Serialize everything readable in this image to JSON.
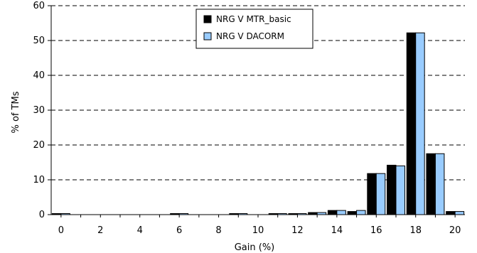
{
  "chart_data": {
    "type": "bar",
    "title": "",
    "xlabel": "Gain (%)",
    "ylabel": "% of TMs",
    "xlim": [
      -0.5,
      20.5
    ],
    "ylim": [
      0,
      60
    ],
    "yticks": [
      0,
      10,
      20,
      30,
      40,
      50,
      60
    ],
    "xticks": [
      0,
      2,
      4,
      6,
      8,
      10,
      12,
      14,
      16,
      18,
      20
    ],
    "grid": true,
    "legend_position": "top-center",
    "categories": [
      0,
      1,
      2,
      3,
      4,
      5,
      6,
      7,
      8,
      9,
      10,
      11,
      12,
      13,
      14,
      15,
      16,
      17,
      18,
      19,
      20
    ],
    "series": [
      {
        "name": "NRG V MTR_basic",
        "color": "#000000",
        "values": [
          0.3,
          0,
          0,
          0,
          0,
          0,
          0.3,
          0,
          0,
          0.3,
          0,
          0.3,
          0.3,
          0.6,
          1.2,
          0.9,
          11.8,
          14.2,
          52.2,
          17.5,
          0.9
        ]
      },
      {
        "name": "NRG V DACORM",
        "color": "#99ccff",
        "values": [
          0.3,
          0,
          0,
          0,
          0,
          0,
          0.3,
          0,
          0,
          0.3,
          0,
          0.3,
          0.3,
          0.6,
          1.2,
          1.2,
          11.8,
          14.0,
          52.2,
          17.5,
          0.9
        ]
      }
    ]
  }
}
